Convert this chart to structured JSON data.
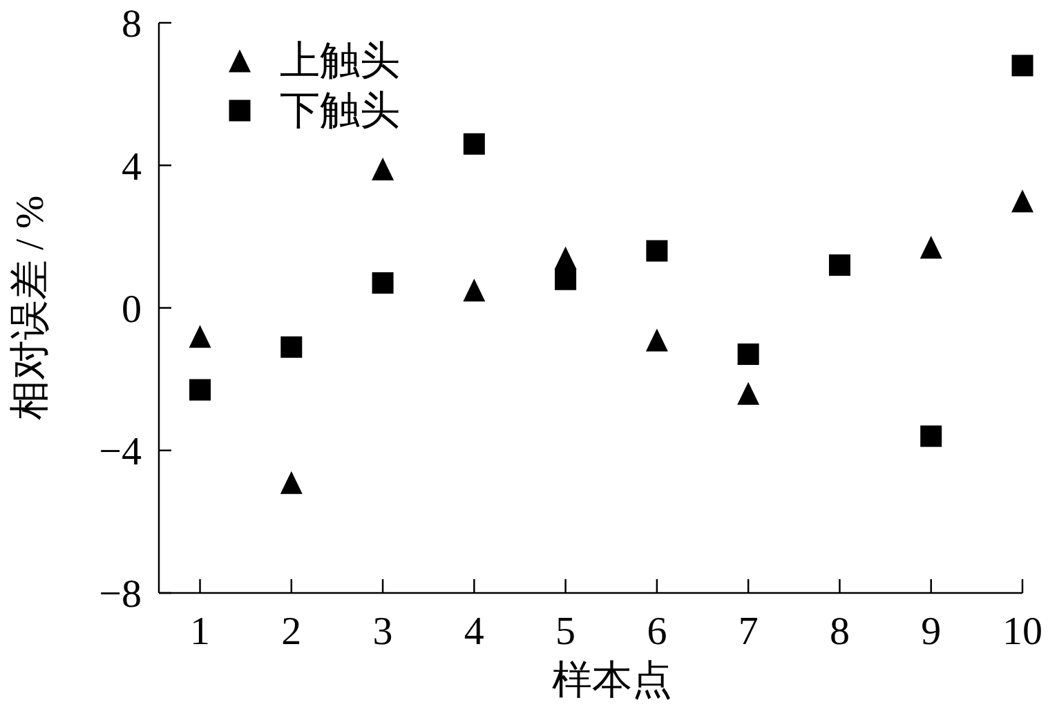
{
  "chart_data": {
    "type": "scatter",
    "xlabel": "样本点",
    "ylabel": "相对误差 / %",
    "x": [
      1,
      2,
      3,
      4,
      5,
      6,
      7,
      8,
      9,
      10
    ],
    "xlim": [
      0.55,
      10
    ],
    "xticks": [
      1,
      2,
      3,
      4,
      5,
      6,
      7,
      8,
      9,
      10
    ],
    "ylim": [
      -8,
      8
    ],
    "yticks": [
      {
        "value": -8,
        "label": "−8"
      },
      {
        "value": -4,
        "label": "−4"
      },
      0,
      4,
      8
    ],
    "legend": "top left",
    "series": [
      {
        "name": "上触头",
        "color": "#000000",
        "marker": "triangle",
        "values": [
          -0.8,
          -4.9,
          3.9,
          0.5,
          1.4,
          -0.9,
          -2.4,
          null,
          1.7,
          3.0
        ]
      },
      {
        "name": "下触头",
        "color": "#000000",
        "marker": "square",
        "values": [
          -2.3,
          -1.1,
          0.7,
          4.6,
          0.8,
          1.6,
          -1.3,
          1.2,
          -3.6,
          6.8
        ]
      }
    ]
  }
}
